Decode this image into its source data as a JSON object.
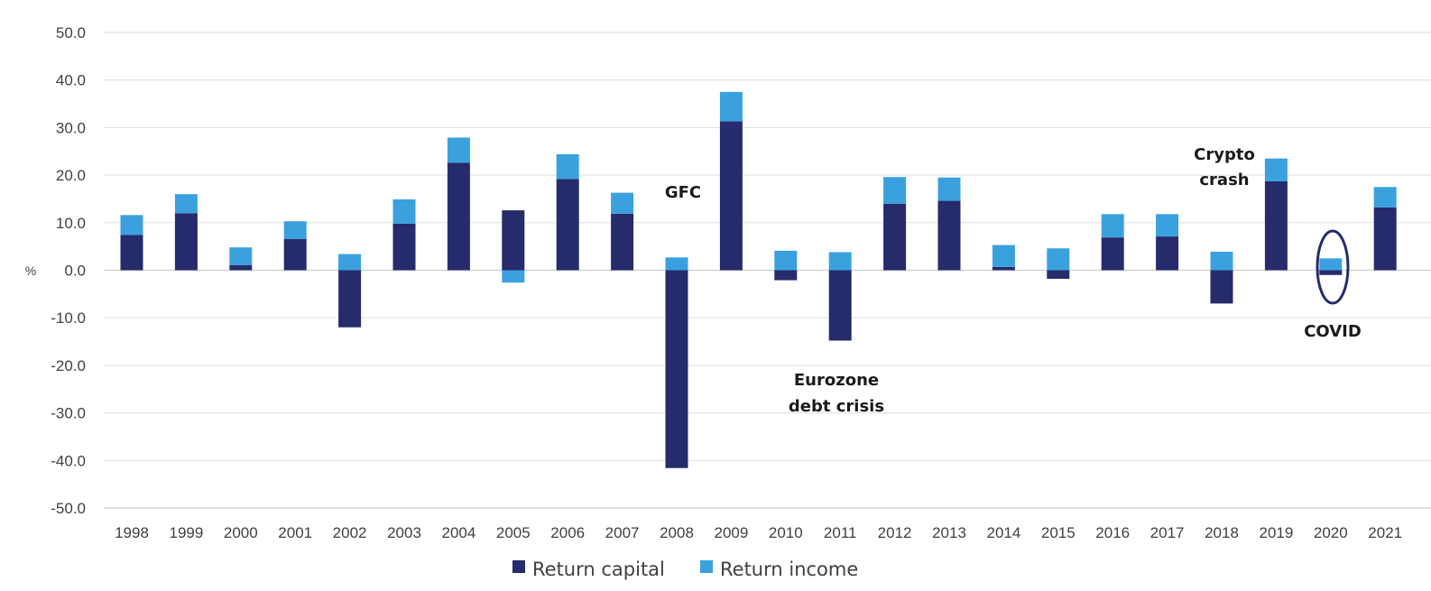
{
  "chart_data": {
    "type": "bar",
    "stacked": true,
    "title": "",
    "xlabel": "",
    "ylabel": "%",
    "ylim": [
      -50,
      50
    ],
    "ytick_step": 10,
    "ytick_labels": [
      "50.0",
      "40.0",
      "30.0",
      "20.0",
      "10.0",
      "0.0",
      "-10.0",
      "-20.0",
      "-30.0",
      "-40.0",
      "-50.0"
    ],
    "grid": true,
    "legend_position": "bottom-center",
    "categories": [
      "1998",
      "1999",
      "2000",
      "2001",
      "2002",
      "2003",
      "2004",
      "2005",
      "2006",
      "2007",
      "2008",
      "2009",
      "2010",
      "2011",
      "2012",
      "2013",
      "2014",
      "2015",
      "2016",
      "2017",
      "2018",
      "2019",
      "2020",
      "2021"
    ],
    "series": [
      {
        "name": "Return capital",
        "color": "#262b6b",
        "values": [
          7.4,
          12.0,
          1.1,
          6.6,
          -12.0,
          9.8,
          22.6,
          12.6,
          19.2,
          11.9,
          -41.6,
          31.3,
          -2.1,
          -14.8,
          14.0,
          14.6,
          0.7,
          -1.8,
          6.9,
          7.1,
          -7.0,
          18.7,
          -1.0,
          13.2
        ]
      },
      {
        "name": "Return income",
        "color": "#3ba1de",
        "values": [
          4.2,
          4.0,
          3.7,
          3.7,
          3.4,
          5.1,
          5.3,
          -2.6,
          5.2,
          4.4,
          2.7,
          6.2,
          4.1,
          3.8,
          5.6,
          4.9,
          4.6,
          4.6,
          4.9,
          4.7,
          3.9,
          4.8,
          2.5,
          4.3
        ]
      }
    ],
    "annotations": [
      {
        "lines": [
          "GFC"
        ],
        "category": "2008"
      },
      {
        "lines": [
          "Eurozone",
          "debt crisis"
        ],
        "category": "2011"
      },
      {
        "lines": [
          "Crypto",
          "crash"
        ],
        "category": "2018"
      },
      {
        "lines": [
          "COVID"
        ],
        "category": "2020"
      }
    ]
  }
}
